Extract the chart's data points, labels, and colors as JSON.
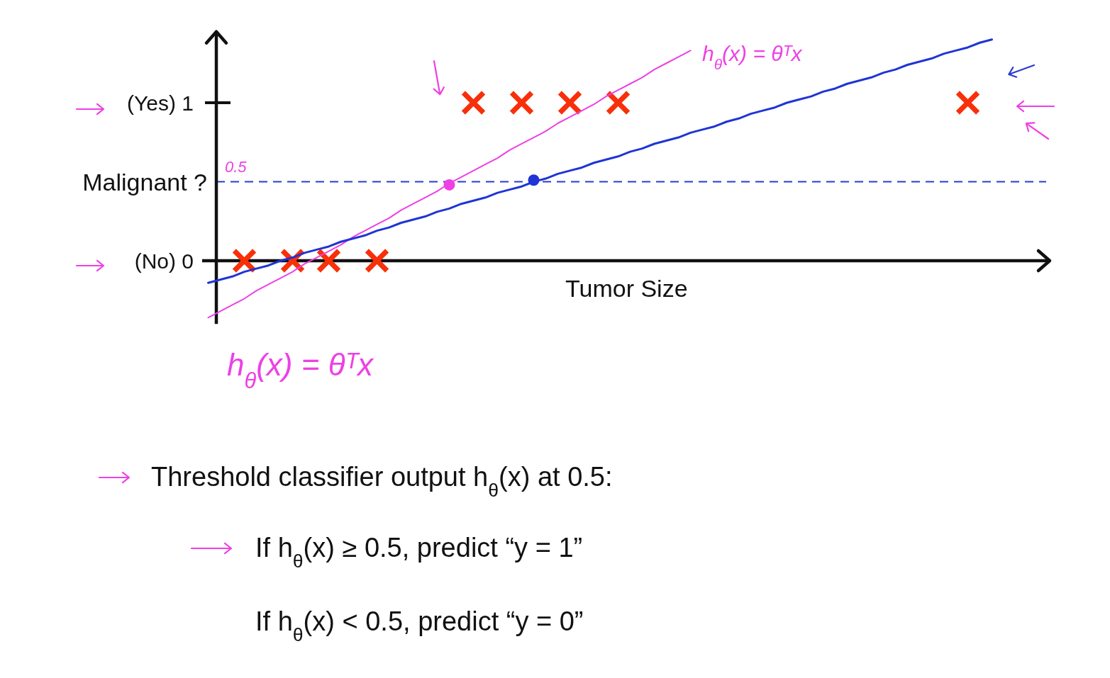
{
  "chart_data": {
    "type": "scatter",
    "xlabel": "Tumor Size",
    "ylabel": "Malignant ?",
    "categories": [
      null,
      null,
      null,
      null,
      null,
      null,
      null,
      null,
      null,
      null,
      null,
      null,
      null,
      null,
      null,
      null,
      null,
      null,
      null,
      null,
      null,
      null,
      null,
      null,
      null,
      null,
      null,
      null,
      null,
      null,
      null,
      null,
      null,
      null,
      null,
      null,
      null,
      null,
      null,
      null,
      null,
      null,
      null,
      null,
      null,
      null,
      null,
      null,
      null,
      null,
      null,
      null,
      null,
      null,
      null,
      null,
      null,
      null,
      null,
      null,
      null,
      null,
      null,
      null,
      null,
      null,
      null,
      null,
      null,
      null
    ],
    "ylim": [
      -0.4,
      1.45
    ],
    "yticks": [
      {
        "value": 0,
        "label": "(No) 0"
      },
      {
        "value": 1,
        "label": "(Yes) 1"
      }
    ],
    "tick_labels": "y",
    "series": [
      {
        "marker": "cross",
        "color": "#f8300a",
        "values": [
          null,
          null,
          null,
          0,
          null,
          null,
          null,
          0,
          null,
          null,
          0,
          null,
          null,
          null,
          0,
          null,
          null,
          null,
          null,
          null,
          null,
          null,
          1,
          null,
          null,
          null,
          1,
          null,
          null,
          null,
          1,
          null,
          null,
          null,
          1,
          null,
          null,
          null,
          null,
          null,
          null,
          null,
          null,
          null,
          null,
          null,
          null,
          null,
          null,
          null,
          null,
          null,
          null,
          null,
          null,
          null,
          null,
          null,
          null,
          null,
          null,
          null,
          null,
          1,
          null,
          null,
          null,
          null,
          null,
          null
        ]
      },
      {
        "type": "line",
        "color": "#ee40e4",
        "values": [
          -0.36,
          -0.32,
          -0.28,
          -0.24,
          -0.19,
          -0.15,
          -0.11,
          -0.07,
          -0.02,
          0.02,
          0.06,
          0.1,
          0.15,
          0.19,
          0.23,
          0.27,
          0.32,
          0.36,
          0.4,
          0.44,
          0.49,
          0.53,
          0.57,
          0.61,
          0.65,
          0.7,
          0.74,
          0.78,
          0.82,
          0.87,
          0.91,
          0.95,
          0.99,
          1.04,
          1.08,
          1.12,
          1.16,
          1.21,
          1.25,
          1.29,
          1.33,
          null,
          null,
          null,
          null,
          null,
          null,
          null,
          null,
          null,
          null,
          null,
          null,
          null,
          null,
          null,
          null,
          null,
          null,
          null,
          null,
          null,
          null,
          null,
          null,
          null,
          null,
          null,
          null,
          null
        ]
      },
      {
        "type": "line",
        "color": "#1f35d4",
        "values": [
          -0.14,
          -0.12,
          -0.1,
          -0.07,
          -0.05,
          -0.03,
          0,
          0.02,
          0.05,
          0.07,
          0.09,
          0.12,
          0.14,
          0.16,
          0.19,
          0.21,
          0.24,
          0.26,
          0.28,
          0.31,
          0.33,
          0.36,
          0.38,
          0.4,
          0.43,
          0.45,
          0.47,
          0.5,
          0.52,
          0.55,
          0.57,
          0.59,
          0.62,
          0.64,
          0.66,
          0.69,
          0.71,
          0.74,
          0.76,
          0.78,
          0.81,
          0.83,
          0.85,
          0.88,
          0.9,
          0.93,
          0.95,
          0.97,
          1.0,
          1.02,
          1.04,
          1.07,
          1.09,
          1.12,
          1.14,
          1.16,
          1.19,
          1.21,
          1.24,
          1.26,
          1.28,
          1.31,
          1.33,
          1.35,
          1.38,
          1.4,
          null,
          null,
          null,
          null
        ]
      },
      {
        "marker": "circle",
        "color": "#ee40e4",
        "values": [
          null,
          null,
          null,
          null,
          null,
          null,
          null,
          null,
          null,
          null,
          null,
          null,
          null,
          null,
          null,
          null,
          null,
          null,
          null,
          null,
          0.48,
          null,
          null,
          null,
          null,
          null,
          null,
          null,
          null,
          null,
          null,
          null,
          null,
          null,
          null,
          null,
          null,
          null,
          null,
          null,
          null,
          null,
          null,
          null,
          null,
          null,
          null,
          null,
          null,
          null,
          null,
          null,
          null,
          null,
          null,
          null,
          null,
          null,
          null,
          null,
          null,
          null,
          null,
          null,
          null,
          null,
          null,
          null,
          null,
          null
        ]
      },
      {
        "marker": "circle",
        "color": "#1f35d4",
        "values": [
          null,
          null,
          null,
          null,
          null,
          null,
          null,
          null,
          null,
          null,
          null,
          null,
          null,
          null,
          null,
          null,
          null,
          null,
          null,
          null,
          null,
          null,
          null,
          null,
          null,
          null,
          null,
          0.51,
          null,
          null,
          null,
          null,
          null,
          null,
          null,
          null,
          null,
          null,
          null,
          null,
          null,
          null,
          null,
          null,
          null,
          null,
          null,
          null,
          null,
          null,
          null,
          null,
          null,
          null,
          null,
          null,
          null,
          null,
          null,
          null,
          null,
          null,
          null,
          null,
          null,
          null,
          null,
          null,
          null,
          null
        ]
      }
    ],
    "ref_lines": [
      {
        "axis": "y",
        "value": 0.5,
        "label": "0.5",
        "color": "#2a3bd0",
        "line_style": "dashed"
      }
    ],
    "annotations": [
      "h$_{θ}$(x) = θᵀx",
      "h$_{θ}$(x) = θᵀx",
      "Threshold classifier output h$_{θ}$(x) at 0.5:",
      "If h$_{θ}$(x) ≥ 0.5, predict “y = 1”",
      "If h$_{θ}$(x) < 0.5, predict “y = 0”"
    ]
  }
}
